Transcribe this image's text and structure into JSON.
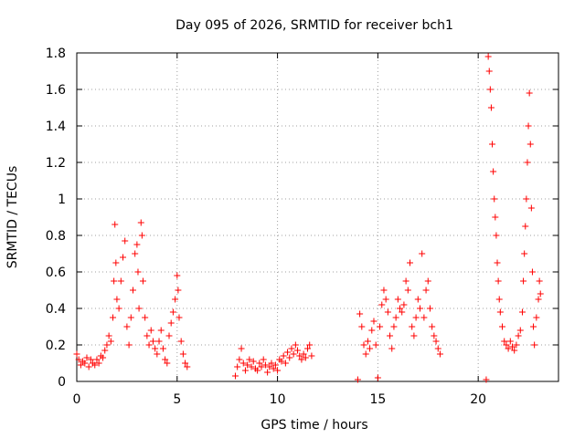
{
  "chart_data": {
    "type": "scatter",
    "title": "Day 095 of 2026, SRMTID for receiver bch1",
    "xlabel": "GPS time / hours",
    "ylabel": "SRMTID / TECUs",
    "xlim": [
      0,
      24
    ],
    "ylim": [
      0,
      1.8
    ],
    "xticks": [
      0,
      5,
      10,
      15,
      20
    ],
    "xtick_labels": [
      "0",
      "5",
      "10",
      "15",
      "20"
    ],
    "yticks": [
      0,
      0.2,
      0.4,
      0.6,
      0.8,
      1.0,
      1.2,
      1.4,
      1.6,
      1.8
    ],
    "ytick_labels": [
      "0",
      "0.2",
      "0.4",
      "0.6",
      "0.8",
      "1",
      "1.2",
      "1.4",
      "1.6",
      "1.8"
    ],
    "grid": true,
    "marker": "+",
    "color": "#ff0000",
    "series": [
      {
        "name": "SRMTID",
        "points": [
          [
            0.0,
            0.15
          ],
          [
            0.1,
            0.12
          ],
          [
            0.2,
            0.09
          ],
          [
            0.3,
            0.11
          ],
          [
            0.4,
            0.1
          ],
          [
            0.5,
            0.13
          ],
          [
            0.6,
            0.08
          ],
          [
            0.7,
            0.12
          ],
          [
            0.8,
            0.1
          ],
          [
            0.9,
            0.09
          ],
          [
            1.0,
            0.12
          ],
          [
            1.1,
            0.1
          ],
          [
            1.2,
            0.14
          ],
          [
            1.3,
            0.13
          ],
          [
            1.4,
            0.17
          ],
          [
            1.5,
            0.2
          ],
          [
            1.6,
            0.25
          ],
          [
            1.7,
            0.22
          ],
          [
            1.8,
            0.35
          ],
          [
            1.85,
            0.55
          ],
          [
            1.9,
            0.86
          ],
          [
            1.95,
            0.65
          ],
          [
            2.0,
            0.45
          ],
          [
            2.1,
            0.4
          ],
          [
            2.2,
            0.55
          ],
          [
            2.3,
            0.68
          ],
          [
            2.4,
            0.77
          ],
          [
            2.5,
            0.3
          ],
          [
            2.6,
            0.2
          ],
          [
            2.7,
            0.35
          ],
          [
            2.8,
            0.5
          ],
          [
            2.9,
            0.7
          ],
          [
            3.0,
            0.75
          ],
          [
            3.05,
            0.6
          ],
          [
            3.1,
            0.4
          ],
          [
            3.2,
            0.87
          ],
          [
            3.25,
            0.8
          ],
          [
            3.3,
            0.55
          ],
          [
            3.4,
            0.35
          ],
          [
            3.5,
            0.25
          ],
          [
            3.6,
            0.2
          ],
          [
            3.7,
            0.28
          ],
          [
            3.8,
            0.22
          ],
          [
            3.9,
            0.18
          ],
          [
            4.0,
            0.15
          ],
          [
            4.1,
            0.22
          ],
          [
            4.2,
            0.28
          ],
          [
            4.3,
            0.18
          ],
          [
            4.4,
            0.12
          ],
          [
            4.5,
            0.1
          ],
          [
            4.6,
            0.25
          ],
          [
            4.7,
            0.32
          ],
          [
            4.8,
            0.38
          ],
          [
            4.9,
            0.45
          ],
          [
            5.0,
            0.58
          ],
          [
            5.05,
            0.5
          ],
          [
            5.1,
            0.35
          ],
          [
            5.2,
            0.22
          ],
          [
            5.3,
            0.15
          ],
          [
            5.4,
            0.1
          ],
          [
            5.5,
            0.08
          ],
          [
            7.9,
            0.03
          ],
          [
            8.0,
            0.08
          ],
          [
            8.1,
            0.12
          ],
          [
            8.2,
            0.18
          ],
          [
            8.3,
            0.1
          ],
          [
            8.4,
            0.06
          ],
          [
            8.5,
            0.09
          ],
          [
            8.6,
            0.12
          ],
          [
            8.7,
            0.08
          ],
          [
            8.8,
            0.11
          ],
          [
            8.9,
            0.07
          ],
          [
            9.0,
            0.06
          ],
          [
            9.1,
            0.1
          ],
          [
            9.2,
            0.08
          ],
          [
            9.3,
            0.12
          ],
          [
            9.4,
            0.09
          ],
          [
            9.5,
            0.05
          ],
          [
            9.6,
            0.08
          ],
          [
            9.7,
            0.1
          ],
          [
            9.8,
            0.07
          ],
          [
            9.9,
            0.09
          ],
          [
            10.0,
            0.06
          ],
          [
            10.1,
            0.12
          ],
          [
            10.2,
            0.11
          ],
          [
            10.3,
            0.14
          ],
          [
            10.4,
            0.1
          ],
          [
            10.5,
            0.16
          ],
          [
            10.6,
            0.13
          ],
          [
            10.7,
            0.18
          ],
          [
            10.8,
            0.15
          ],
          [
            10.9,
            0.2
          ],
          [
            11.0,
            0.17
          ],
          [
            11.1,
            0.14
          ],
          [
            11.2,
            0.12
          ],
          [
            11.3,
            0.15
          ],
          [
            11.4,
            0.13
          ],
          [
            11.5,
            0.18
          ],
          [
            11.6,
            0.2
          ],
          [
            11.7,
            0.14
          ],
          [
            14.0,
            0.01
          ],
          [
            14.1,
            0.37
          ],
          [
            14.2,
            0.3
          ],
          [
            14.3,
            0.2
          ],
          [
            14.4,
            0.15
          ],
          [
            14.5,
            0.22
          ],
          [
            14.6,
            0.18
          ],
          [
            14.7,
            0.28
          ],
          [
            14.8,
            0.33
          ],
          [
            14.9,
            0.2
          ],
          [
            15.0,
            0.02
          ],
          [
            15.1,
            0.3
          ],
          [
            15.2,
            0.42
          ],
          [
            15.3,
            0.5
          ],
          [
            15.4,
            0.45
          ],
          [
            15.5,
            0.38
          ],
          [
            15.6,
            0.25
          ],
          [
            15.7,
            0.18
          ],
          [
            15.8,
            0.3
          ],
          [
            15.9,
            0.35
          ],
          [
            16.0,
            0.45
          ],
          [
            16.1,
            0.4
          ],
          [
            16.2,
            0.38
          ],
          [
            16.3,
            0.42
          ],
          [
            16.4,
            0.55
          ],
          [
            16.5,
            0.5
          ],
          [
            16.6,
            0.65
          ],
          [
            16.7,
            0.3
          ],
          [
            16.8,
            0.25
          ],
          [
            16.9,
            0.35
          ],
          [
            17.0,
            0.45
          ],
          [
            17.1,
            0.4
          ],
          [
            17.2,
            0.7
          ],
          [
            17.3,
            0.35
          ],
          [
            17.4,
            0.5
          ],
          [
            17.5,
            0.55
          ],
          [
            17.6,
            0.4
          ],
          [
            17.7,
            0.3
          ],
          [
            17.8,
            0.25
          ],
          [
            17.9,
            0.22
          ],
          [
            18.0,
            0.18
          ],
          [
            18.1,
            0.15
          ],
          [
            20.4,
            0.01
          ],
          [
            20.5,
            1.78
          ],
          [
            20.55,
            1.7
          ],
          [
            20.6,
            1.6
          ],
          [
            20.65,
            1.5
          ],
          [
            20.7,
            1.3
          ],
          [
            20.75,
            1.15
          ],
          [
            20.8,
            1.0
          ],
          [
            20.85,
            0.9
          ],
          [
            20.9,
            0.8
          ],
          [
            20.95,
            0.65
          ],
          [
            21.0,
            0.55
          ],
          [
            21.05,
            0.45
          ],
          [
            21.1,
            0.38
          ],
          [
            21.2,
            0.3
          ],
          [
            21.3,
            0.22
          ],
          [
            21.4,
            0.2
          ],
          [
            21.5,
            0.18
          ],
          [
            21.6,
            0.22
          ],
          [
            21.7,
            0.19
          ],
          [
            21.8,
            0.17
          ],
          [
            21.9,
            0.2
          ],
          [
            22.0,
            0.25
          ],
          [
            22.1,
            0.28
          ],
          [
            22.2,
            0.38
          ],
          [
            22.25,
            0.55
          ],
          [
            22.3,
            0.7
          ],
          [
            22.35,
            0.85
          ],
          [
            22.4,
            1.0
          ],
          [
            22.45,
            1.2
          ],
          [
            22.5,
            1.4
          ],
          [
            22.55,
            1.58
          ],
          [
            22.6,
            1.3
          ],
          [
            22.65,
            0.95
          ],
          [
            22.7,
            0.6
          ],
          [
            22.75,
            0.3
          ],
          [
            22.8,
            0.2
          ],
          [
            22.9,
            0.35
          ],
          [
            23.0,
            0.45
          ],
          [
            23.05,
            0.55
          ],
          [
            23.1,
            0.48
          ]
        ]
      }
    ]
  }
}
